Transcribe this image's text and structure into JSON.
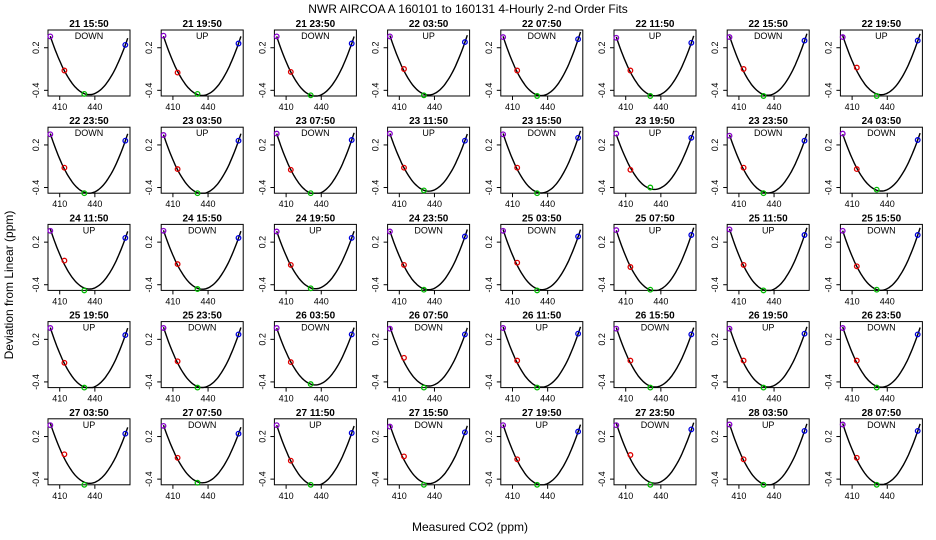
{
  "chart_data": {
    "type": "scatter",
    "title": "NWR   AIRCOA A   160101 to 160131   4-Hourly 2-nd Order Fits",
    "xlabel": "Measured CO2 (ppm)",
    "ylabel": "Deviation from Linear (ppm)",
    "xticks": [
      "410",
      "440"
    ],
    "yticks": [
      "-0.4",
      "0.2"
    ],
    "xlim": [
      400,
      470
    ],
    "ylim": [
      -0.48,
      0.45
    ],
    "grid": false,
    "standards_x": [
      402,
      414,
      431,
      466
    ],
    "colors": {
      "s1": "#8800cc",
      "s2": "#e00000",
      "s3": "#00bb00",
      "s4": "#0000dd",
      "curve": "#000000"
    },
    "panels": [
      {
        "label": "21 15:50",
        "dir": "DOWN",
        "s1": 0.36,
        "s2": -0.12,
        "s3": -0.45,
        "s4": 0.24
      },
      {
        "label": "21 19:50",
        "dir": "UP",
        "s1": 0.37,
        "s2": -0.15,
        "s3": -0.45,
        "s4": 0.26
      },
      {
        "label": "21 23:50",
        "dir": "DOWN",
        "s1": 0.36,
        "s2": -0.14,
        "s3": -0.47,
        "s4": 0.26
      },
      {
        "label": "22 03:50",
        "dir": "UP",
        "s1": 0.36,
        "s2": -0.1,
        "s3": -0.47,
        "s4": 0.28
      },
      {
        "label": "22 07:50",
        "dir": "DOWN",
        "s1": 0.35,
        "s2": -0.12,
        "s3": -0.48,
        "s4": 0.32
      },
      {
        "label": "22 11:50",
        "dir": "UP",
        "s1": 0.34,
        "s2": -0.12,
        "s3": -0.48,
        "s4": 0.27
      },
      {
        "label": "22 15:50",
        "dir": "DOWN",
        "s1": 0.35,
        "s2": -0.1,
        "s3": -0.48,
        "s4": 0.3
      },
      {
        "label": "22 19:50",
        "dir": "UP",
        "s1": 0.35,
        "s2": -0.08,
        "s3": -0.48,
        "s4": 0.3
      },
      {
        "label": "22 23:50",
        "dir": "DOWN",
        "s1": 0.35,
        "s2": -0.12,
        "s3": -0.48,
        "s4": 0.26
      },
      {
        "label": "23 03:50",
        "dir": "UP",
        "s1": 0.34,
        "s2": -0.14,
        "s3": -0.48,
        "s4": 0.26
      },
      {
        "label": "23 07:50",
        "dir": "DOWN",
        "s1": 0.36,
        "s2": -0.15,
        "s3": -0.48,
        "s4": 0.27
      },
      {
        "label": "23 11:50",
        "dir": "UP",
        "s1": 0.36,
        "s2": -0.12,
        "s3": -0.44,
        "s4": 0.26
      },
      {
        "label": "23 15:50",
        "dir": "DOWN",
        "s1": 0.35,
        "s2": -0.12,
        "s3": -0.48,
        "s4": 0.3
      },
      {
        "label": "23 19:50",
        "dir": "UP",
        "s1": 0.36,
        "s2": -0.15,
        "s3": -0.4,
        "s4": 0.3
      },
      {
        "label": "23 23:50",
        "dir": "DOWN",
        "s1": 0.33,
        "s2": -0.12,
        "s3": -0.48,
        "s4": 0.26
      },
      {
        "label": "24 03:50",
        "dir": "DOWN",
        "s1": 0.36,
        "s2": -0.14,
        "s3": -0.43,
        "s4": 0.27
      },
      {
        "label": "24 11:50",
        "dir": "UP",
        "s1": 0.36,
        "s2": -0.06,
        "s3": -0.48,
        "s4": 0.26
      },
      {
        "label": "24 15:50",
        "dir": "DOWN",
        "s1": 0.36,
        "s2": -0.11,
        "s3": -0.46,
        "s4": 0.26
      },
      {
        "label": "24 19:50",
        "dir": "UP",
        "s1": 0.35,
        "s2": -0.12,
        "s3": -0.45,
        "s4": 0.26
      },
      {
        "label": "24 23:50",
        "dir": "DOWN",
        "s1": 0.35,
        "s2": -0.12,
        "s3": -0.47,
        "s4": 0.28
      },
      {
        "label": "25 03:50",
        "dir": "DOWN",
        "s1": 0.36,
        "s2": -0.09,
        "s3": -0.48,
        "s4": 0.28
      },
      {
        "label": "25 07:50",
        "dir": "UP",
        "s1": 0.37,
        "s2": -0.15,
        "s3": -0.47,
        "s4": 0.3
      },
      {
        "label": "25 11:50",
        "dir": "UP",
        "s1": 0.38,
        "s2": -0.12,
        "s3": -0.48,
        "s4": 0.3
      },
      {
        "label": "25 15:50",
        "dir": "DOWN",
        "s1": 0.36,
        "s2": -0.14,
        "s3": -0.47,
        "s4": 0.3
      },
      {
        "label": "25 19:50",
        "dir": "UP",
        "s1": 0.36,
        "s2": -0.13,
        "s3": -0.48,
        "s4": 0.26
      },
      {
        "label": "25 23:50",
        "dir": "DOWN",
        "s1": 0.36,
        "s2": -0.11,
        "s3": -0.48,
        "s4": 0.27
      },
      {
        "label": "26 03:50",
        "dir": "DOWN",
        "s1": 0.36,
        "s2": -0.12,
        "s3": -0.43,
        "s4": 0.27
      },
      {
        "label": "26 07:50",
        "dir": "DOWN",
        "s1": 0.35,
        "s2": -0.06,
        "s3": -0.48,
        "s4": 0.27
      },
      {
        "label": "26 11:50",
        "dir": "UP",
        "s1": 0.36,
        "s2": -0.1,
        "s3": -0.48,
        "s4": 0.28
      },
      {
        "label": "26 15:50",
        "dir": "DOWN",
        "s1": 0.35,
        "s2": -0.1,
        "s3": -0.48,
        "s4": 0.27
      },
      {
        "label": "26 19:50",
        "dir": "UP",
        "s1": 0.35,
        "s2": -0.1,
        "s3": -0.48,
        "s4": 0.28
      },
      {
        "label": "26 23:50",
        "dir": "DOWN",
        "s1": 0.36,
        "s2": -0.1,
        "s3": -0.48,
        "s4": 0.27
      },
      {
        "label": "27 03:50",
        "dir": "UP",
        "s1": 0.36,
        "s2": -0.05,
        "s3": -0.48,
        "s4": 0.24
      },
      {
        "label": "27 07:50",
        "dir": "DOWN",
        "s1": 0.35,
        "s2": -0.1,
        "s3": -0.45,
        "s4": 0.24
      },
      {
        "label": "27 11:50",
        "dir": "UP",
        "s1": 0.36,
        "s2": -0.14,
        "s3": -0.48,
        "s4": 0.25
      },
      {
        "label": "27 15:50",
        "dir": "DOWN",
        "s1": 0.34,
        "s2": -0.08,
        "s3": -0.48,
        "s4": 0.26
      },
      {
        "label": "27 19:50",
        "dir": "UP",
        "s1": 0.36,
        "s2": -0.12,
        "s3": -0.48,
        "s4": 0.27
      },
      {
        "label": "27 23:50",
        "dir": "DOWN",
        "s1": 0.36,
        "s2": -0.06,
        "s3": -0.48,
        "s4": 0.3
      },
      {
        "label": "28 03:50",
        "dir": "UP",
        "s1": 0.37,
        "s2": -0.12,
        "s3": -0.48,
        "s4": 0.28
      },
      {
        "label": "28 07:50",
        "dir": "DOWN",
        "s1": 0.37,
        "s2": -0.1,
        "s3": -0.48,
        "s4": 0.28
      }
    ]
  }
}
